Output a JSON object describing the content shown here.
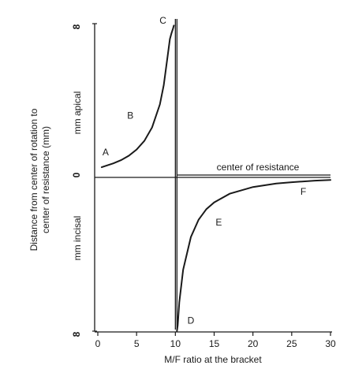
{
  "chart_data": {
    "type": "line",
    "xlabel": "M/F ratio at the bracket",
    "ylabel_line1": "Distance from center of rotation to",
    "ylabel_line2": "center of resistance (mm)",
    "upper_axis_label": "mm apical",
    "lower_axis_label": "mm incisal",
    "y_top_tick": "8",
    "y_zero_tick": "0",
    "y_bottom_tick": "8",
    "xlim": [
      0,
      30
    ],
    "ylim": [
      -8,
      8
    ],
    "x_ticks": [
      0,
      5,
      10,
      15,
      20,
      25,
      30
    ],
    "x_tick_labels": [
      "0",
      "5",
      "10",
      "15",
      "20",
      "25",
      "30"
    ],
    "asymptote_x": 10,
    "reference_line_label": "center of resistance",
    "series": [
      {
        "segment": "upper",
        "x": [
          0.5,
          1,
          2,
          3,
          4,
          5,
          6,
          7,
          8,
          8.5,
          9,
          9.3,
          9.5,
          9.7,
          9.8
        ],
        "y": [
          0.53,
          0.6,
          0.73,
          0.9,
          1.13,
          1.45,
          1.9,
          2.6,
          3.8,
          4.8,
          6.3,
          7.2,
          7.5,
          7.75,
          7.9
        ]
      },
      {
        "segment": "lower",
        "x": [
          10.2,
          10.3,
          10.5,
          11,
          12,
          13,
          14,
          15,
          17,
          20,
          23,
          25,
          28,
          30
        ],
        "y": [
          -8.0,
          -7.7,
          -6.5,
          -4.8,
          -3.1,
          -2.2,
          -1.65,
          -1.3,
          -0.85,
          -0.5,
          -0.32,
          -0.25,
          -0.17,
          -0.13
        ]
      }
    ],
    "annotations": [
      {
        "text": "A",
        "x": 1.0,
        "y": 1.15
      },
      {
        "text": "B",
        "x": 4.2,
        "y": 3.05
      },
      {
        "text": "C",
        "x": 8.4,
        "y": 8.0
      },
      {
        "text": "D",
        "x": 12.0,
        "y": -7.6
      },
      {
        "text": "E",
        "x": 15.6,
        "y": -2.5
      },
      {
        "text": "F",
        "x": 26.5,
        "y": -0.9
      }
    ]
  }
}
